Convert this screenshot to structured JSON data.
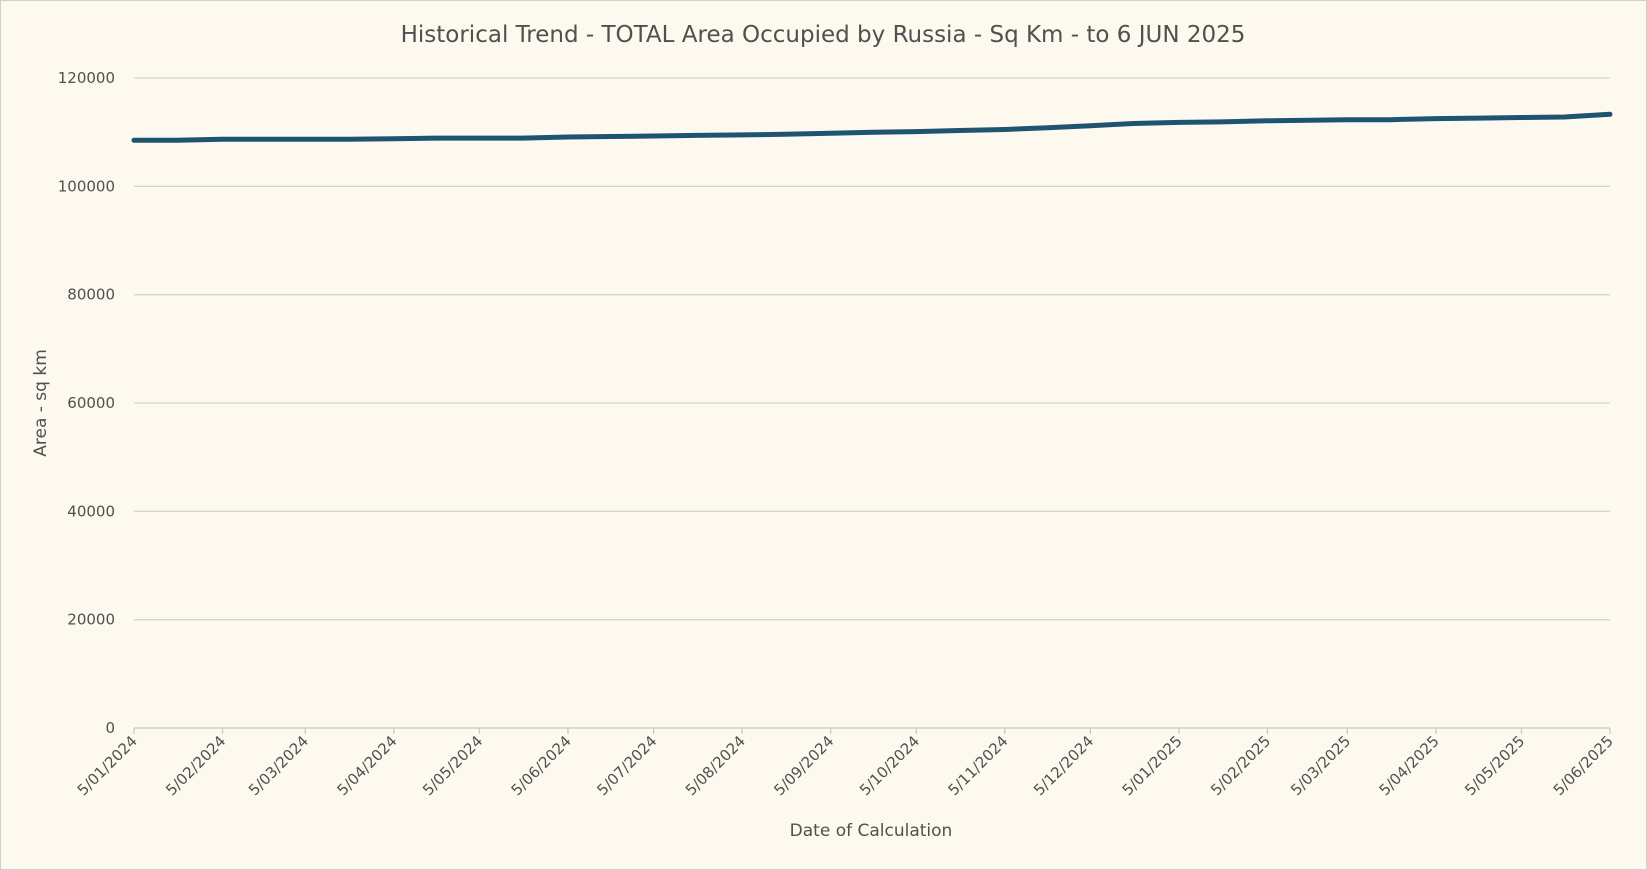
{
  "chart_data": {
    "type": "line",
    "title": "Historical Trend - TOTAL Area Occupied by Russia - Sq Km - to 6 JUN 2025",
    "xlabel": "Date of Calculation",
    "ylabel": "Area - sq km",
    "ylim": [
      0,
      120000
    ],
    "y_ticks": [
      0,
      20000,
      40000,
      60000,
      80000,
      100000,
      120000
    ],
    "y_tick_labels": [
      "0",
      "20000",
      "40000",
      "60000",
      "80000",
      "100000",
      "120000"
    ],
    "x_range": [
      "2024-01-05",
      "2025-06-05"
    ],
    "x_ticks": [
      "2024-01-05",
      "2024-02-05",
      "2024-03-05",
      "2024-04-05",
      "2024-05-05",
      "2024-06-05",
      "2024-07-05",
      "2024-08-05",
      "2024-09-05",
      "2024-10-05",
      "2024-11-05",
      "2024-12-05",
      "2025-01-05",
      "2025-02-05",
      "2025-03-05",
      "2025-04-05",
      "2025-05-05",
      "2025-06-05"
    ],
    "x_tick_labels": [
      "5/01/2024",
      "5/02/2024",
      "5/03/2024",
      "5/04/2024",
      "5/05/2024",
      "5/06/2024",
      "5/07/2024",
      "5/08/2024",
      "5/09/2024",
      "5/10/2024",
      "5/11/2024",
      "5/12/2024",
      "5/01/2025",
      "5/02/2025",
      "5/03/2025",
      "5/04/2025",
      "5/05/2025",
      "5/06/2025"
    ],
    "grid": true,
    "legend": "none",
    "line_color": "#1f5470",
    "x": [
      "2024-01-05",
      "2024-01-20",
      "2024-02-05",
      "2024-02-20",
      "2024-03-05",
      "2024-03-20",
      "2024-04-05",
      "2024-04-20",
      "2024-05-05",
      "2024-05-20",
      "2024-06-05",
      "2024-06-20",
      "2024-07-05",
      "2024-07-20",
      "2024-08-05",
      "2024-08-20",
      "2024-09-05",
      "2024-09-20",
      "2024-10-05",
      "2024-10-20",
      "2024-11-05",
      "2024-11-20",
      "2024-12-05",
      "2024-12-20",
      "2025-01-05",
      "2025-01-20",
      "2025-02-05",
      "2025-02-20",
      "2025-03-05",
      "2025-03-20",
      "2025-04-05",
      "2025-04-20",
      "2025-05-05",
      "2025-05-20",
      "2025-06-05"
    ],
    "values": [
      108500,
      108500,
      108700,
      108700,
      108700,
      108700,
      108800,
      108900,
      108900,
      108900,
      109100,
      109200,
      109300,
      109400,
      109500,
      109600,
      109800,
      110000,
      110100,
      110300,
      110500,
      110800,
      111200,
      111600,
      111800,
      111900,
      112100,
      112200,
      112300,
      112300,
      112500,
      112600,
      112700,
      112800,
      113300
    ]
  }
}
